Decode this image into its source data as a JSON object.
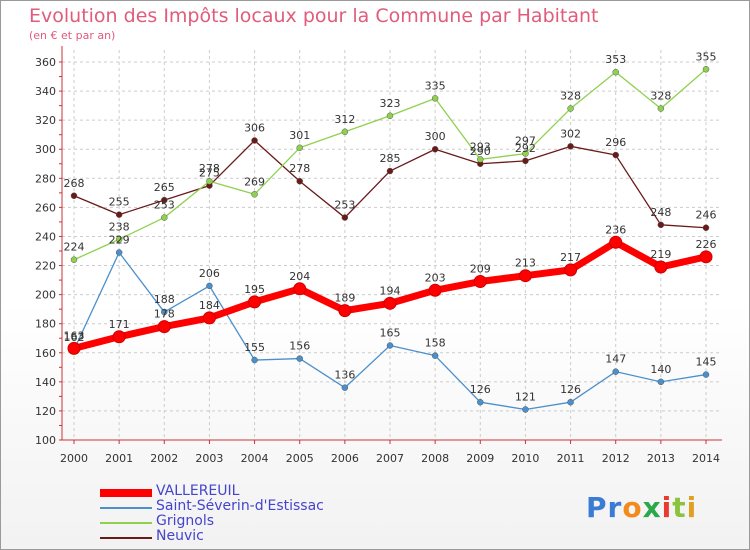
{
  "title": "Evolution des Impôts locaux pour la Commune par Habitant",
  "subtitle": "(en € et par an)",
  "logo": {
    "text": "Proxiti",
    "letters": [
      "P",
      "r",
      "o",
      "x",
      "i",
      "t",
      "i"
    ],
    "colors": [
      "#3a7bd5",
      "#3a7bd5",
      "#f28a1c",
      "#2aa84a",
      "#e63b2e",
      "#8ac43f",
      "#e0a021"
    ]
  },
  "chart_data": {
    "type": "line",
    "title": "Evolution des Impôts locaux pour la Commune par Habitant",
    "subtitle": "(en € et par an)",
    "xlabel": "",
    "ylabel": "",
    "categories": [
      "2000",
      "2001",
      "2002",
      "2003",
      "2004",
      "2005",
      "2006",
      "2007",
      "2008",
      "2009",
      "2010",
      "2011",
      "2012",
      "2013",
      "2014"
    ],
    "ylim": [
      100,
      360
    ],
    "yticks": [
      100,
      120,
      140,
      160,
      180,
      200,
      220,
      240,
      260,
      280,
      300,
      320,
      340,
      360
    ],
    "grid": true,
    "legend_position": "bottom-left",
    "series": [
      {
        "name": "VALLEREUIL",
        "color": "#ff0000",
        "values": [
          163,
          171,
          178,
          184,
          195,
          204,
          189,
          194,
          203,
          209,
          213,
          217,
          236,
          219,
          226
        ]
      },
      {
        "name": "Saint-Séverin-d'Estissac",
        "color": "#4a90cc",
        "values": [
          162,
          229,
          188,
          206,
          155,
          156,
          136,
          165,
          158,
          126,
          121,
          126,
          147,
          140,
          145
        ]
      },
      {
        "name": "Grignols",
        "color": "#8fd14f",
        "values": [
          224,
          238,
          253,
          278,
          269,
          301,
          312,
          323,
          335,
          293,
          297,
          328,
          353,
          328,
          355
        ]
      },
      {
        "name": "Neuvic",
        "color": "#6b1a1a",
        "values": [
          268,
          255,
          265,
          275,
          306,
          278,
          253,
          285,
          300,
          290,
          292,
          302,
          296,
          248,
          246
        ]
      }
    ]
  }
}
